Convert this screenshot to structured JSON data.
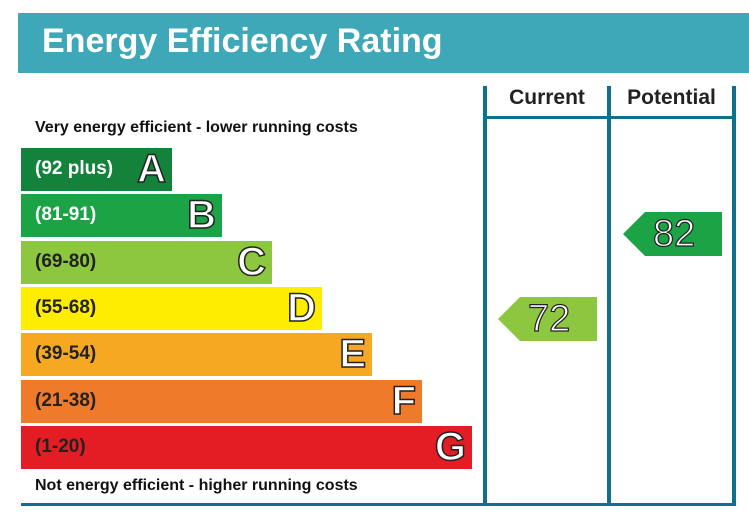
{
  "header": {
    "title": "Energy Efficiency Rating"
  },
  "columns": {
    "current": "Current",
    "potential": "Potential"
  },
  "captions": {
    "top": "Very energy efficient - lower running costs",
    "bottom": "Not energy efficient - higher running costs"
  },
  "chart_data": {
    "type": "bar",
    "categories": [
      "A",
      "B",
      "C",
      "D",
      "E",
      "F",
      "G"
    ],
    "ranges": [
      "(92 plus)",
      "(81-91)",
      "(69-80)",
      "(55-68)",
      "(39-54)",
      "(21-38)",
      "(1-20)"
    ],
    "colors": [
      "#13833b",
      "#1ba345",
      "#8dc63f",
      "#ffed00",
      "#f7a823",
      "#ef7a2a",
      "#e31d23"
    ],
    "current": {
      "value": 72,
      "band": "C",
      "color": "#8dc63f"
    },
    "potential": {
      "value": 82,
      "band": "B",
      "color": "#1ba345"
    }
  }
}
